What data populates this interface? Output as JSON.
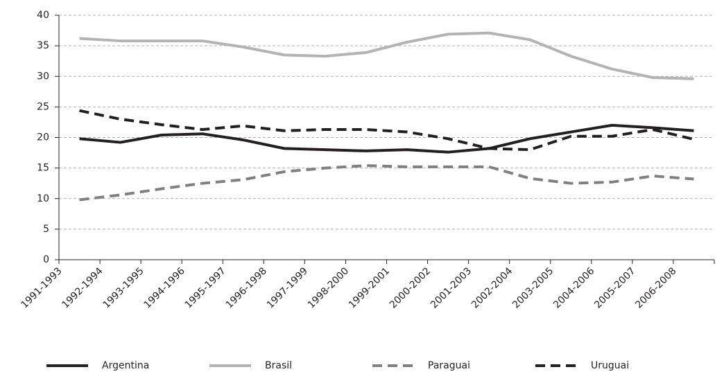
{
  "chart_data": {
    "type": "line",
    "categories": [
      "1991-1993",
      "1992-1994",
      "1993-1995",
      "1994-1996",
      "1995-1997",
      "1996-1998",
      "1997-1999",
      "1998-2000",
      "1999-2001",
      "2000-2002",
      "2001-2003",
      "2002-2004",
      "2003-2005",
      "2004-2006",
      "2005-2007",
      "2006-2008"
    ],
    "series": [
      {
        "name": "Argentina",
        "color": "#231f20",
        "dashed": false,
        "values": [
          19.8,
          19.2,
          20.4,
          20.6,
          19.6,
          18.2,
          18.0,
          17.8,
          18.0,
          17.6,
          18.2,
          19.8,
          20.9,
          22.0,
          21.6,
          21.1
        ]
      },
      {
        "name": "Brasil",
        "color": "#b3b3b3",
        "dashed": false,
        "values": [
          36.2,
          35.8,
          35.8,
          35.8,
          34.8,
          33.5,
          33.3,
          33.9,
          35.6,
          36.9,
          37.1,
          36.0,
          33.3,
          31.2,
          29.8,
          29.6
        ]
      },
      {
        "name": "Paraguai",
        "color": "#808080",
        "dashed": true,
        "values": [
          9.8,
          10.6,
          11.6,
          12.5,
          13.1,
          14.4,
          15.0,
          15.4,
          15.2,
          15.2,
          15.2,
          13.3,
          12.5,
          12.7,
          13.7,
          13.2
        ]
      },
      {
        "name": "Uruguai",
        "color": "#231f20",
        "dashed": true,
        "values": [
          24.4,
          23.0,
          22.1,
          21.3,
          21.9,
          21.1,
          21.3,
          21.3,
          20.9,
          19.8,
          18.2,
          18.0,
          20.2,
          20.2,
          21.3,
          19.7
        ]
      }
    ],
    "ylim": [
      0,
      40
    ],
    "yticks": [
      0,
      5,
      10,
      15,
      20,
      25,
      30,
      35,
      40
    ],
    "grid": true,
    "legend": "bottom"
  }
}
